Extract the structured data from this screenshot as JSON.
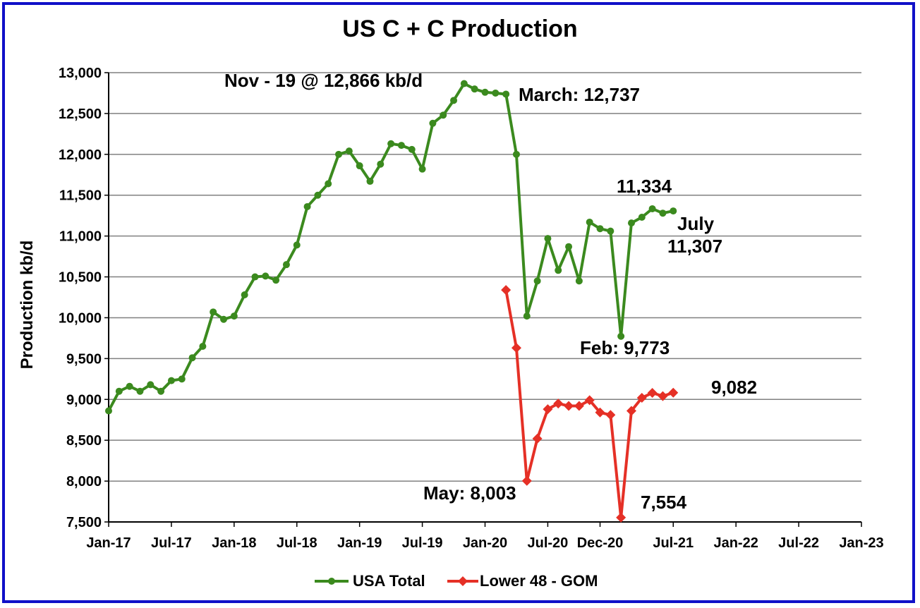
{
  "chart_data": {
    "type": "line",
    "title": "US C + C Production",
    "ylabel": "Production kb/d",
    "xlabel": "",
    "ylim": [
      7500,
      13000
    ],
    "y_ticks": [
      7500,
      8000,
      8500,
      9000,
      9500,
      10000,
      10500,
      11000,
      11500,
      12000,
      12500,
      13000
    ],
    "y_tick_labels": [
      "7,500",
      "8,000",
      "8,500",
      "9,000",
      "9,500",
      "10,000",
      "10,500",
      "11,000",
      "11,500",
      "12,000",
      "12,500",
      "13,000"
    ],
    "x_range": [
      "2017-01",
      "2023-01"
    ],
    "x_ticks": [
      "2017-01",
      "2017-07",
      "2018-01",
      "2018-07",
      "2019-01",
      "2019-07",
      "2020-01",
      "2020-07",
      "2020-12",
      "2021-07",
      "2022-01",
      "2022-07",
      "2023-01"
    ],
    "x_tick_labels": [
      "Jan-17",
      "Jul-17",
      "Jan-18",
      "Jul-18",
      "Jan-19",
      "Jul-19",
      "Jan-20",
      "Jul-20",
      "Dec-20",
      "Jul-21",
      "Jan-22",
      "Jul-22",
      "Jan-23"
    ],
    "grid": true,
    "legend_position": "bottom",
    "series": [
      {
        "name": "USA Total",
        "color": "#3b8a1e",
        "marker": "circle",
        "x": [
          "2017-01",
          "2017-02",
          "2017-03",
          "2017-04",
          "2017-05",
          "2017-06",
          "2017-07",
          "2017-08",
          "2017-09",
          "2017-10",
          "2017-11",
          "2017-12",
          "2018-01",
          "2018-02",
          "2018-03",
          "2018-04",
          "2018-05",
          "2018-06",
          "2018-07",
          "2018-08",
          "2018-09",
          "2018-10",
          "2018-11",
          "2018-12",
          "2019-01",
          "2019-02",
          "2019-03",
          "2019-04",
          "2019-05",
          "2019-06",
          "2019-07",
          "2019-08",
          "2019-09",
          "2019-10",
          "2019-11",
          "2019-12",
          "2020-01",
          "2020-02",
          "2020-03",
          "2020-04",
          "2020-05",
          "2020-06",
          "2020-07",
          "2020-08",
          "2020-09",
          "2020-10",
          "2020-11",
          "2020-12",
          "2021-01",
          "2021-02",
          "2021-03",
          "2021-04",
          "2021-05",
          "2021-06",
          "2021-07"
        ],
        "values": [
          8860,
          9100,
          9160,
          9100,
          9180,
          9100,
          9230,
          9250,
          9510,
          9650,
          10070,
          9980,
          10020,
          10280,
          10500,
          10510,
          10460,
          10650,
          10890,
          11360,
          11500,
          11640,
          12000,
          12040,
          11860,
          11670,
          11880,
          12130,
          12110,
          12060,
          11820,
          12380,
          12480,
          12660,
          12866,
          12800,
          12760,
          12750,
          12737,
          12000,
          10020,
          10450,
          10970,
          10580,
          10870,
          10450,
          11170,
          11090,
          11060,
          9773,
          11160,
          11230,
          11334,
          11280,
          11307
        ]
      },
      {
        "name": "Lower 48 - GOM",
        "color": "#e53026",
        "marker": "diamond",
        "x": [
          "2020-03",
          "2020-04",
          "2020-05",
          "2020-06",
          "2020-07",
          "2020-08",
          "2020-09",
          "2020-10",
          "2020-11",
          "2020-12",
          "2021-01",
          "2021-02",
          "2021-03",
          "2021-04",
          "2021-05",
          "2021-06",
          "2021-07"
        ],
        "values": [
          10340,
          9630,
          8003,
          8520,
          8880,
          8950,
          8920,
          8920,
          8990,
          8840,
          8810,
          7554,
          8860,
          9020,
          9080,
          9040,
          9082
        ]
      }
    ],
    "annotations": [
      {
        "text": "Nov - 19 @ 12,866 kb/d"
      },
      {
        "text": "March: 12,737"
      },
      {
        "text": "11,334"
      },
      {
        "text": "July"
      },
      {
        "text": "11,307"
      },
      {
        "text": "Feb: 9,773"
      },
      {
        "text": "9,082"
      },
      {
        "text": "May: 8,003"
      },
      {
        "text": "7,554"
      }
    ]
  }
}
